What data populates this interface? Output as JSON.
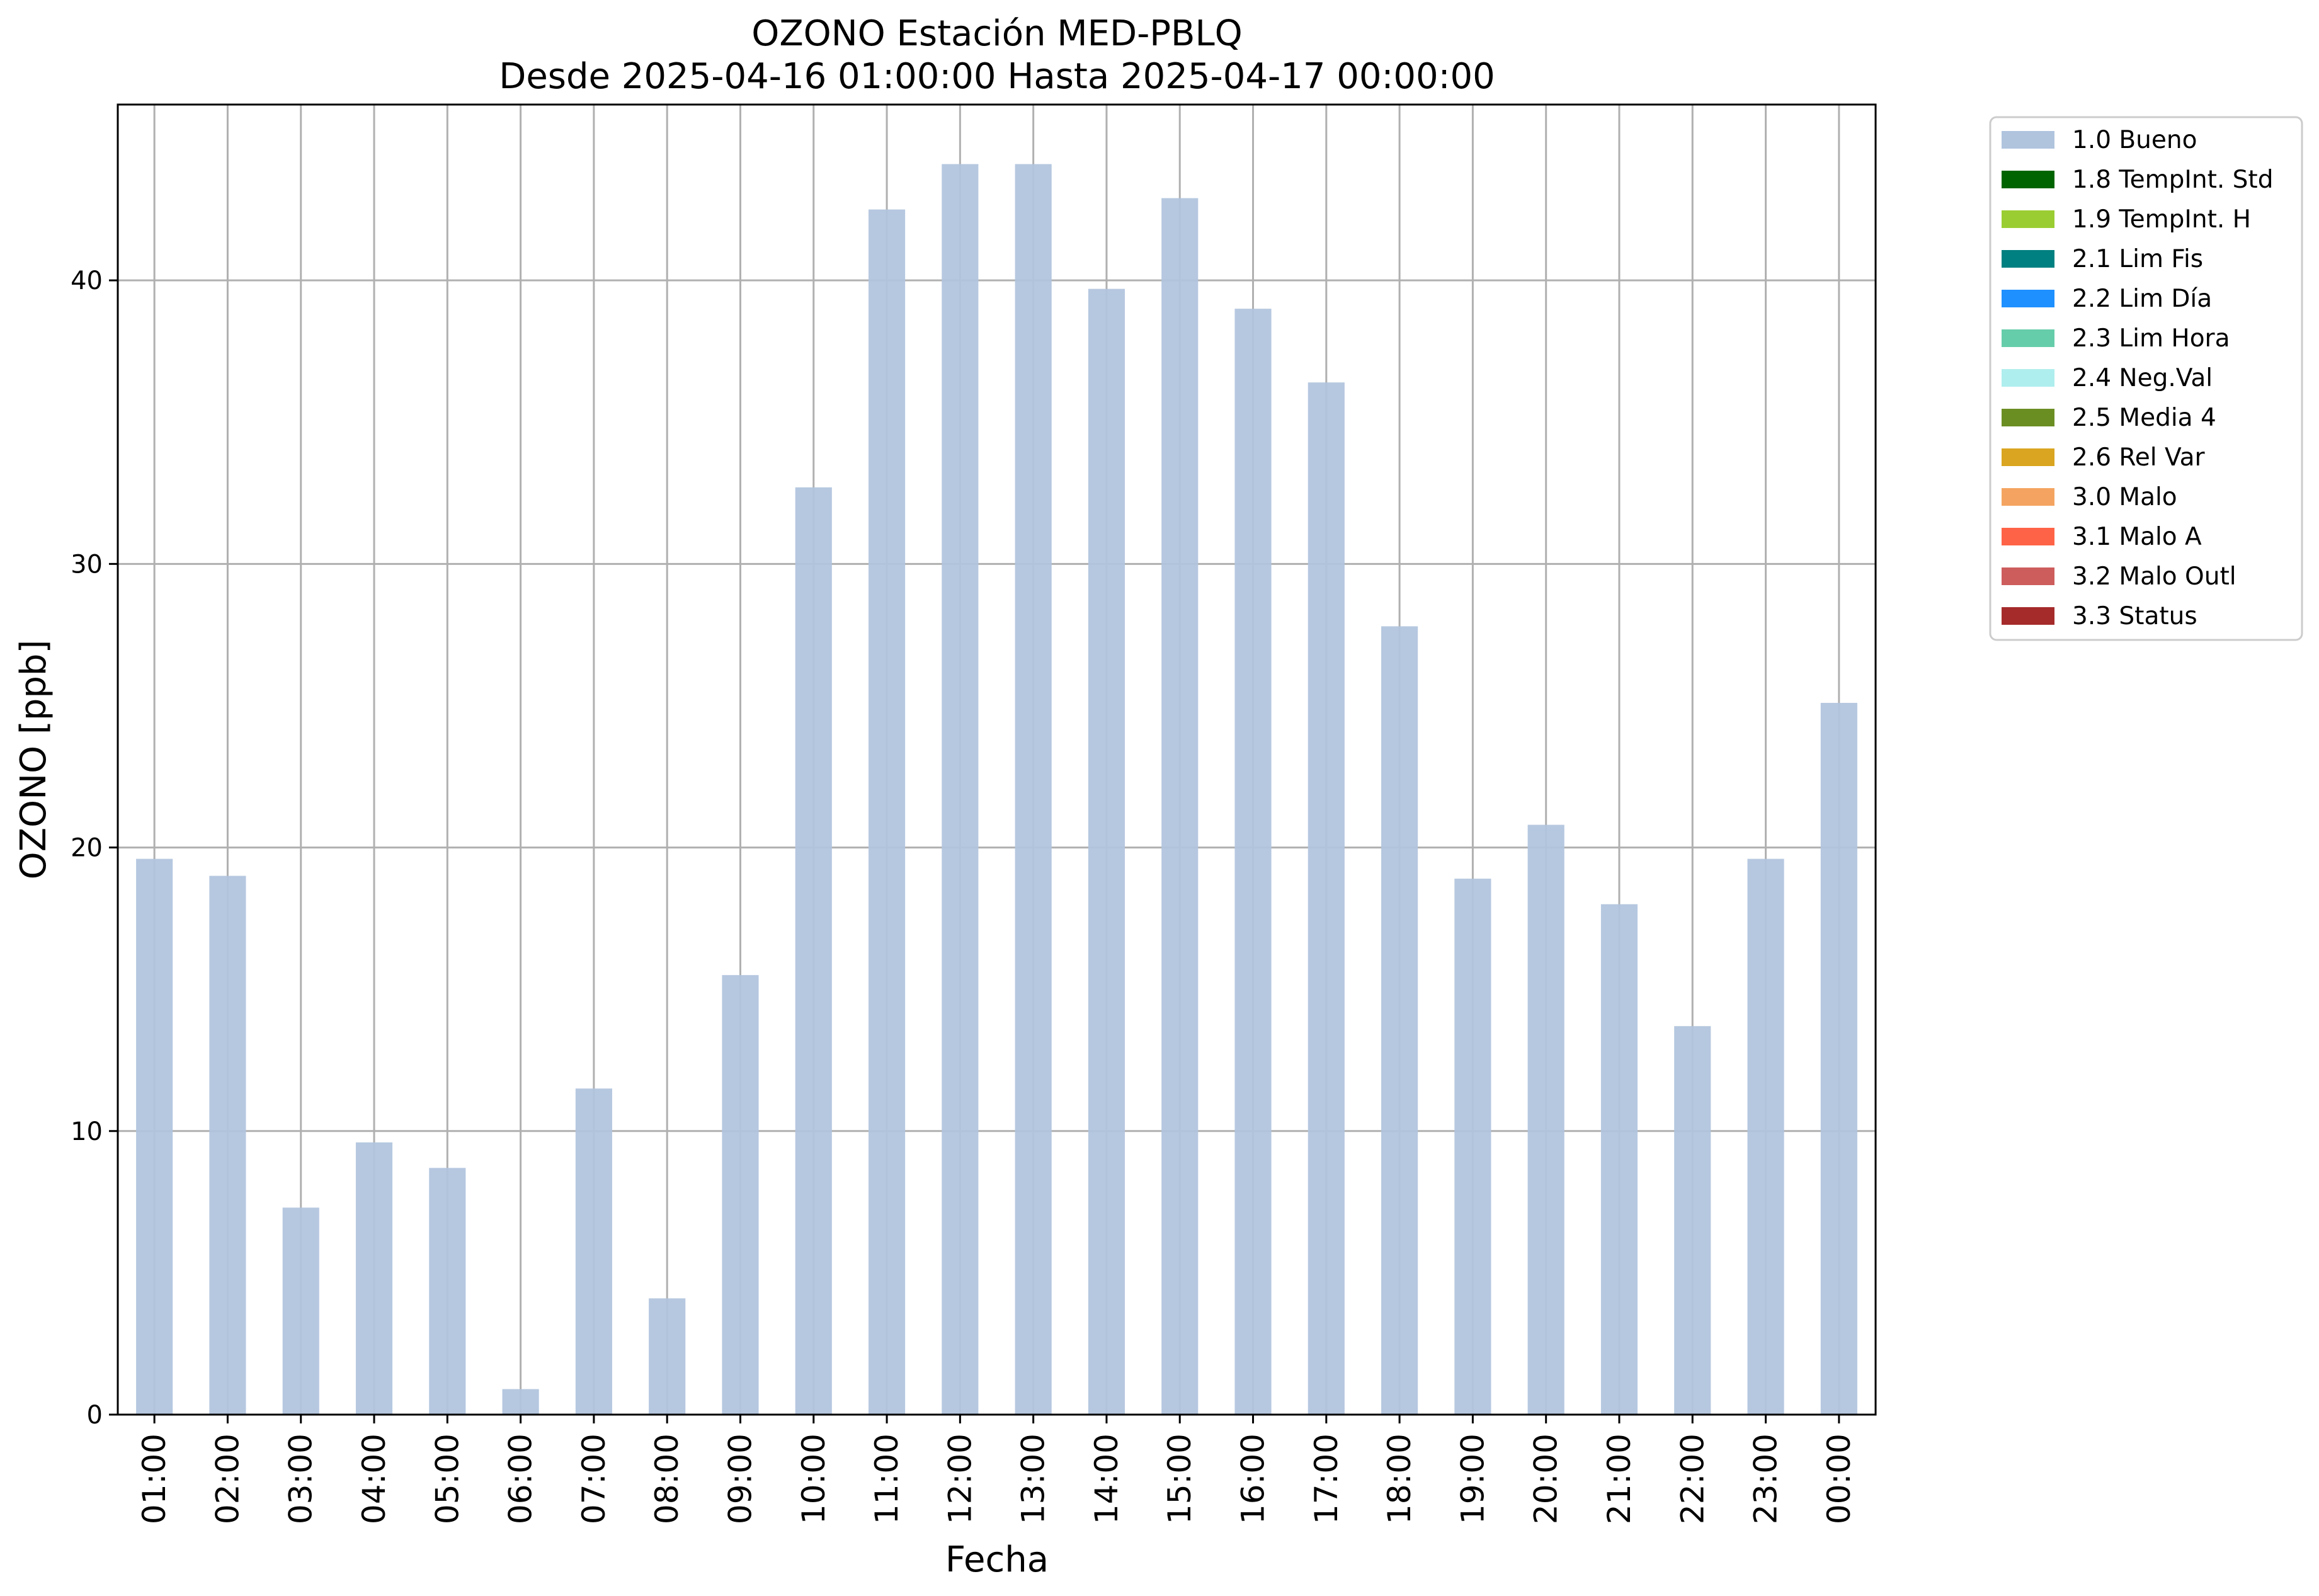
{
  "chart_data": {
    "type": "bar",
    "title": "OZONO Estación MED-PBLQ",
    "subtitle": "Desde 2025-04-16 01:00:00 Hasta 2025-04-17 00:00:00",
    "xlabel": "Fecha",
    "ylabel": "OZONO [ppb]",
    "ylim": [
      0,
      46.2
    ],
    "yticks": [
      0,
      10,
      20,
      30,
      40
    ],
    "grid": true,
    "legend_position": "outside-top-right",
    "categories": [
      "01:00",
      "02:00",
      "03:00",
      "04:00",
      "05:00",
      "06:00",
      "07:00",
      "08:00",
      "09:00",
      "10:00",
      "11:00",
      "12:00",
      "13:00",
      "14:00",
      "15:00",
      "16:00",
      "17:00",
      "18:00",
      "19:00",
      "20:00",
      "21:00",
      "22:00",
      "23:00",
      "00:00"
    ],
    "series": [
      {
        "name": "1.0 Bueno",
        "color": "#b0c4de",
        "values": [
          19.6,
          19.0,
          7.3,
          9.6,
          8.7,
          0.9,
          11.5,
          4.1,
          15.5,
          32.7,
          42.5,
          44.1,
          44.1,
          39.7,
          42.9,
          39.0,
          36.4,
          27.8,
          18.9,
          20.8,
          18.0,
          13.7,
          19.6,
          25.1
        ]
      }
    ],
    "legend": [
      {
        "label": "1.0 Bueno",
        "color": "#b0c4de"
      },
      {
        "label": "1.8 TempInt. Std",
        "color": "#006400"
      },
      {
        "label": "1.9 TempInt. H",
        "color": "#9acd32"
      },
      {
        "label": "2.1 Lim Fis",
        "color": "#008080"
      },
      {
        "label": "2.2 Lim Día",
        "color": "#1e90ff"
      },
      {
        "label": "2.3 Lim Hora",
        "color": "#66cdaa"
      },
      {
        "label": "2.4 Neg.Val",
        "color": "#afeeee"
      },
      {
        "label": "2.5 Media 4",
        "color": "#6b8e23"
      },
      {
        "label": "2.6 Rel Var",
        "color": "#daa520"
      },
      {
        "label": "3.0 Malo",
        "color": "#f4a460"
      },
      {
        "label": "3.1 Malo A",
        "color": "#ff6347"
      },
      {
        "label": "3.2 Malo Outl",
        "color": "#cd5c5c"
      },
      {
        "label": "3.3 Status",
        "color": "#a52a2a"
      }
    ]
  }
}
